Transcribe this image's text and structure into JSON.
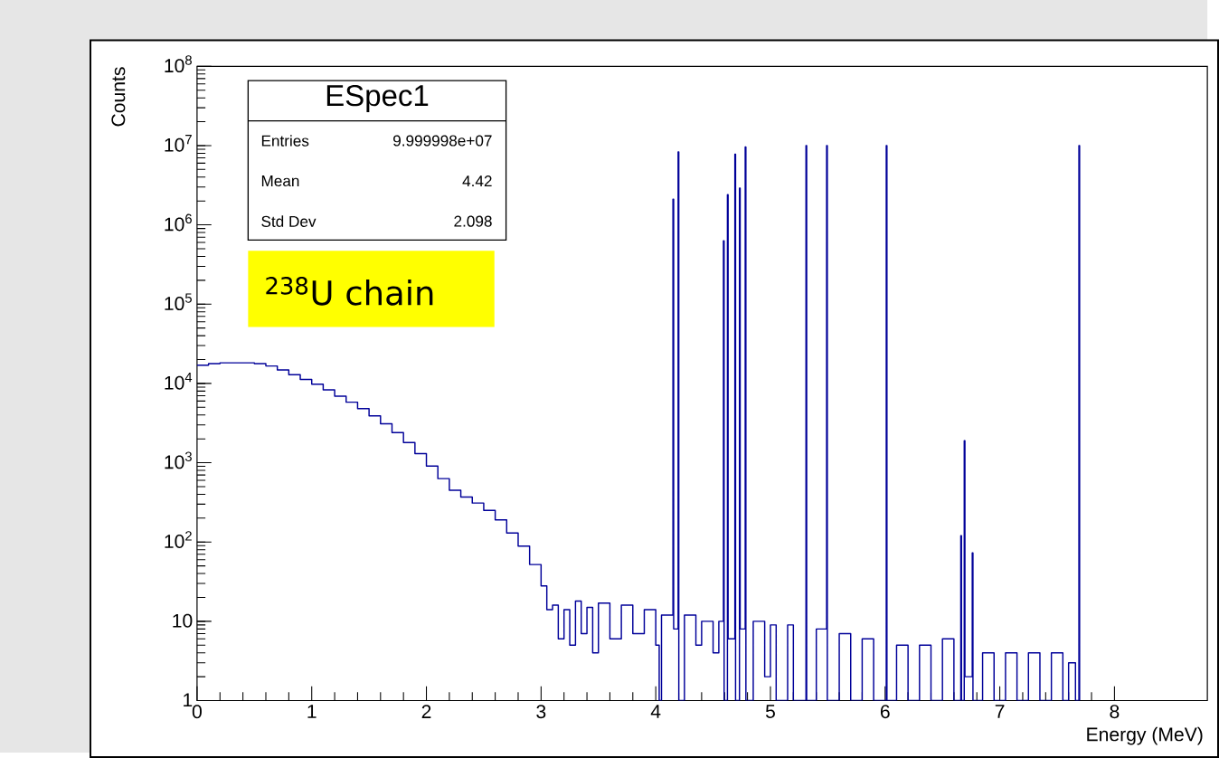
{
  "chart_data": {
    "type": "step",
    "xlabel": "Energy (MeV)",
    "ylabel": "Counts",
    "annotations": [
      "ESpec1",
      "Entries",
      "9.999998e+07",
      "Mean",
      "4.42",
      "Std Dev",
      "2.098",
      "$^{238}$U chain"
    ],
    "x": [
      0,
      0.1,
      0.2,
      0.3,
      0.4,
      0.5,
      0.6,
      0.7,
      0.8,
      0.9,
      1.0,
      1.1,
      1.2,
      1.3,
      1.4,
      1.5,
      1.6,
      1.7,
      1.8,
      1.9,
      2.0,
      2.1,
      2.2,
      2.3,
      2.4,
      2.5,
      2.6,
      2.7,
      2.8,
      2.9,
      3.0,
      3.05,
      3.1,
      3.15,
      3.2,
      3.25,
      3.3,
      3.35,
      3.4,
      3.45,
      3.5,
      3.6,
      3.7,
      3.8,
      3.9,
      4.0,
      4.03,
      4.05,
      4.15,
      4.156,
      4.195,
      4.201,
      4.25,
      4.35,
      4.4,
      4.5,
      4.55,
      4.59,
      4.596,
      4.625,
      4.631,
      4.69,
      4.696,
      4.73,
      4.736,
      4.78,
      4.786,
      4.85,
      4.95,
      5.0,
      5.05,
      5.15,
      5.2,
      5.31,
      5.316,
      5.4,
      5.49,
      5.496,
      5.6,
      5.7,
      5.8,
      5.9,
      6.01,
      6.016,
      6.1,
      6.2,
      6.3,
      6.4,
      6.5,
      6.6,
      6.66,
      6.666,
      6.69,
      6.696,
      6.76,
      6.766,
      6.85,
      6.95,
      7.05,
      7.15,
      7.25,
      7.35,
      7.45,
      7.55,
      7.6,
      7.66,
      7.69,
      7.696
    ],
    "values": [
      17000,
      17800,
      18200,
      18200,
      18200,
      17800,
      16600,
      14800,
      12900,
      11200,
      9800,
      8300,
      6900,
      5800,
      4800,
      3900,
      3100,
      2400,
      1800,
      1300,
      910,
      630,
      450,
      370,
      310,
      250,
      190,
      130,
      89,
      52,
      28,
      14,
      16,
      6,
      14,
      5,
      18,
      7,
      15,
      4,
      17,
      6,
      16,
      7,
      14,
      5,
      1,
      12,
      2100000,
      8,
      8300000,
      1,
      12,
      5,
      10,
      4,
      10,
      630000,
      1,
      2400000,
      6,
      7800000,
      1,
      2900000,
      8,
      9600000,
      1,
      10,
      2,
      9,
      1,
      9,
      1,
      10000000,
      1,
      8,
      10000000,
      1,
      7,
      1,
      6,
      1,
      10000000,
      1,
      5,
      1,
      5,
      1,
      6,
      1,
      120,
      1,
      1900,
      2,
      73,
      1,
      4,
      1,
      4,
      1,
      4,
      1,
      4,
      1,
      3,
      1,
      10000000,
      1
    ],
    "color": "#000099",
    "log": true,
    "xlim": [
      0,
      8.81
    ],
    "ylim": [
      1,
      100000000
    ],
    "xticks": [
      0,
      1,
      2,
      3,
      4,
      5,
      6,
      7,
      8
    ],
    "yticks": [
      {
        "value": 1,
        "label": "1"
      },
      {
        "value": 10,
        "label": "10"
      },
      {
        "value": 100,
        "label": "10$^{2}$"
      },
      {
        "value": 1000,
        "label": "10$^{3}$"
      },
      {
        "value": 10000,
        "label": "10$^{4}$"
      },
      {
        "value": 100000,
        "label": "10$^{5}$"
      },
      {
        "value": 1000000,
        "label": "10$^{6}$"
      },
      {
        "value": 10000000,
        "label": "10$^{7}$"
      },
      {
        "value": 100000000,
        "label": "10$^{8}$"
      }
    ]
  }
}
